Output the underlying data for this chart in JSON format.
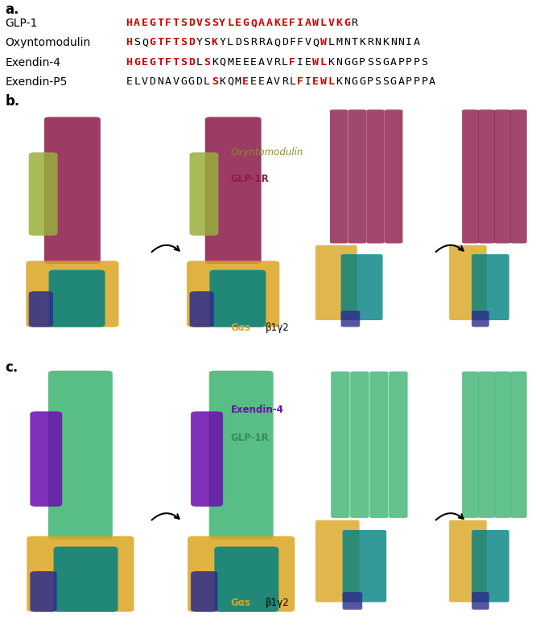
{
  "panel_a": {
    "label": "a.",
    "rows": [
      {
        "name": "GLP-1",
        "sequence": [
          {
            "text": "HAEGTFTSDVSSYLEGQAAKEFIAWLVKG",
            "color": "#cc0000"
          },
          {
            "text": "R",
            "color": "#000000"
          }
        ]
      },
      {
        "name": "Oxyntomodulin",
        "sequence": [
          {
            "text": "H",
            "color": "#cc0000"
          },
          {
            "text": "SQ",
            "color": "#000000"
          },
          {
            "text": "GTFTSD",
            "color": "#cc0000"
          },
          {
            "text": "YS",
            "color": "#000000"
          },
          {
            "text": "K",
            "color": "#cc0000"
          },
          {
            "text": "YL",
            "color": "#000000"
          },
          {
            "text": "DSRRAQDFFVQ",
            "color": "#000000"
          },
          {
            "text": "W",
            "color": "#cc0000"
          },
          {
            "text": "LMNTKRNKNNIA",
            "color": "#000000"
          }
        ]
      },
      {
        "name": "Exendin-4",
        "sequence": [
          {
            "text": "HGEGTFTSD",
            "color": "#cc0000"
          },
          {
            "text": "L",
            "color": "#000000"
          },
          {
            "text": "S",
            "color": "#cc0000"
          },
          {
            "text": "KQMEEEA",
            "color": "#000000"
          },
          {
            "text": "VRL",
            "color": "#000000"
          },
          {
            "text": "F",
            "color": "#cc0000"
          },
          {
            "text": "IE",
            "color": "#000000"
          },
          {
            "text": "WL",
            "color": "#cc0000"
          },
          {
            "text": "KNGGPSSGAPPPS",
            "color": "#000000"
          }
        ]
      },
      {
        "name": "Exendin-P5",
        "sequence": [
          {
            "text": "ELVDNAVGGD",
            "color": "#000000"
          },
          {
            "text": "L",
            "color": "#000000"
          },
          {
            "text": "S",
            "color": "#cc0000"
          },
          {
            "text": "K",
            "color": "#000000"
          },
          {
            "text": "QM",
            "color": "#000000"
          },
          {
            "text": "E",
            "color": "#cc0000"
          },
          {
            "text": "EEA",
            "color": "#000000"
          },
          {
            "text": "VRL",
            "color": "#000000"
          },
          {
            "text": "F",
            "color": "#cc0000"
          },
          {
            "text": "I",
            "color": "#000000"
          },
          {
            "text": "E",
            "color": "#cc0000"
          },
          {
            "text": "WL",
            "color": "#cc0000"
          },
          {
            "text": "KNGGPSSGAPPPA",
            "color": "#000000"
          }
        ]
      }
    ]
  },
  "panel_b_label": "b.",
  "panel_c_label": "c.",
  "label_b_oxyntomodulin": "Oxyntomodulin",
  "label_b_glp1r": "GLP-1R",
  "label_b_gas": "Gαs",
  "label_b_b1g2": "β1γ2",
  "label_c_exendin4": "Exendin-4",
  "label_c_glp1r": "GLP-1R",
  "label_c_gas": "Gαs",
  "label_c_b1g2": "β1γ2",
  "color_glp1r_b": "#8B1A4A",
  "color_oxyntomodulin": "#9aae3b",
  "color_gas_b": "#DAA520",
  "color_teal_b": "#008080",
  "color_navy_b": "#2C2C8C",
  "color_glp1r_c": "#3CB371",
  "color_exendin4": "#6A0DAD",
  "color_gas_c": "#DAA520",
  "color_teal_c": "#008080",
  "color_navy_c": "#2C2C8C",
  "background_color": "#ffffff",
  "seq_font": "DejaVu Sans Mono",
  "seq_fontsize": 9.5,
  "label_fontsize": 12,
  "name_fontsize": 10
}
